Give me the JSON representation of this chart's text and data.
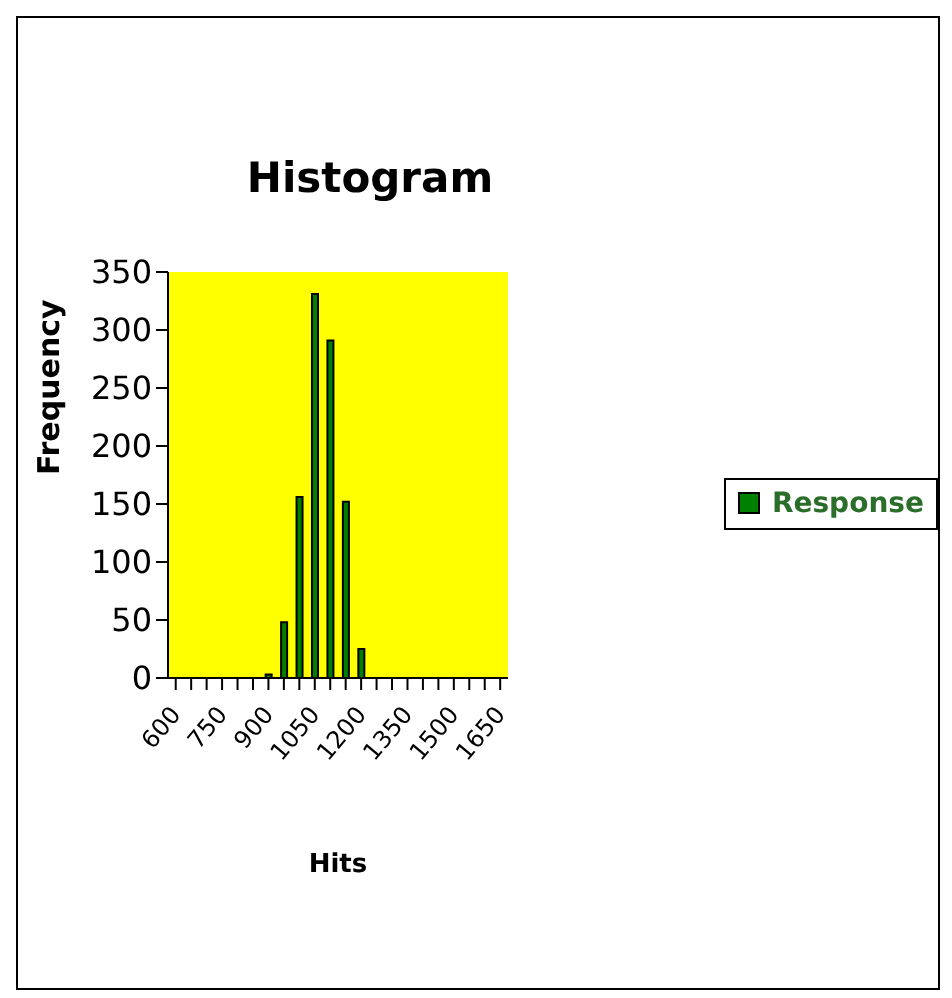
{
  "chart_data": {
    "type": "bar",
    "title": "Histogram",
    "xlabel": "Hits",
    "ylabel": "Frequency",
    "categories": [
      "600",
      null,
      null,
      "750",
      null,
      null,
      "900",
      null,
      null,
      "1050",
      null,
      null,
      "1200",
      null,
      null,
      "1350",
      null,
      null,
      "1500",
      null,
      null,
      "1650"
    ],
    "series": [
      {
        "name": "Response",
        "color": "#008000",
        "values": [
          0,
          0,
          0,
          0,
          0,
          0,
          3,
          48,
          156,
          331,
          291,
          152,
          25,
          0,
          0,
          0,
          0,
          0,
          0,
          0,
          0,
          0
        ]
      }
    ],
    "ylim": [
      0,
      350
    ],
    "yticks": [
      0,
      50,
      100,
      150,
      200,
      250,
      300,
      350
    ],
    "grid": false,
    "legend": "right"
  }
}
